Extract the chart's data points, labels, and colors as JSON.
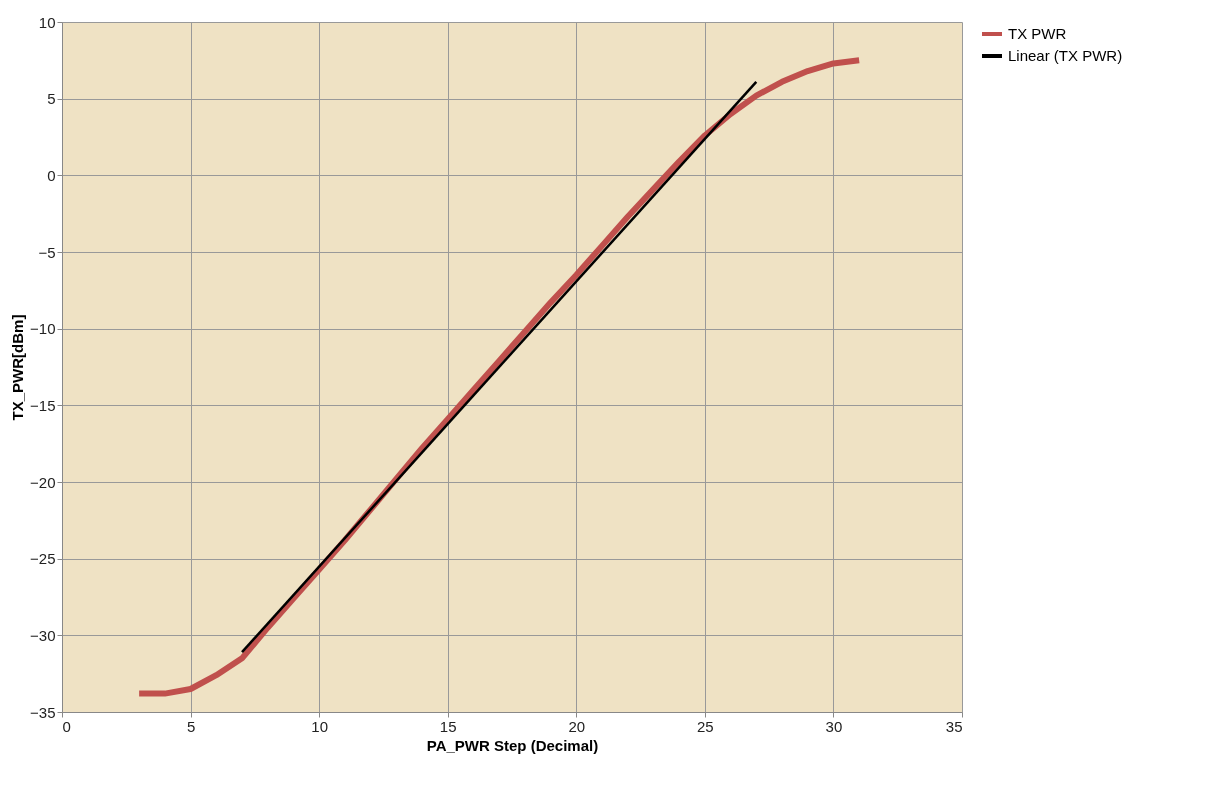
{
  "chart_data": {
    "type": "line",
    "xlabel": "PA_PWR Step (Decimal)",
    "ylabel": "TX_PWR[dBm]",
    "xlim": [
      0,
      35
    ],
    "xticks": [
      0,
      5,
      10,
      15,
      20,
      25,
      30,
      35
    ],
    "ylim": [
      -35,
      10
    ],
    "yticks": [
      -35,
      -30,
      -25,
      -20,
      -15,
      -10,
      -5,
      0,
      5,
      10
    ],
    "grid": true,
    "legend": "right",
    "marker": "none",
    "line_style": "solid",
    "series": [
      {
        "name": "TX PWR",
        "color": "#c0504d",
        "x": [
          3,
          4,
          5,
          6,
          7,
          8,
          9,
          10,
          11,
          12,
          13,
          14,
          15,
          16,
          17,
          18,
          19,
          20,
          21,
          22,
          23,
          24,
          25,
          26,
          27,
          28,
          29,
          30,
          31
        ],
        "values": [
          -33.8,
          -33.8,
          -33.5,
          -32.6,
          -31.5,
          -29.5,
          -27.6,
          -25.7,
          -23.8,
          -21.8,
          -19.8,
          -17.8,
          -15.9,
          -14.0,
          -12.1,
          -10.2,
          -8.3,
          -6.5,
          -4.6,
          -2.7,
          -0.9,
          0.9,
          2.6,
          4.0,
          5.2,
          6.1,
          6.8,
          7.3,
          7.5
        ]
      },
      {
        "name": "Linear (TX PWR)",
        "color": "#000000",
        "x": [
          7,
          27
        ],
        "values": [
          -31.1,
          6.1
        ]
      }
    ]
  }
}
